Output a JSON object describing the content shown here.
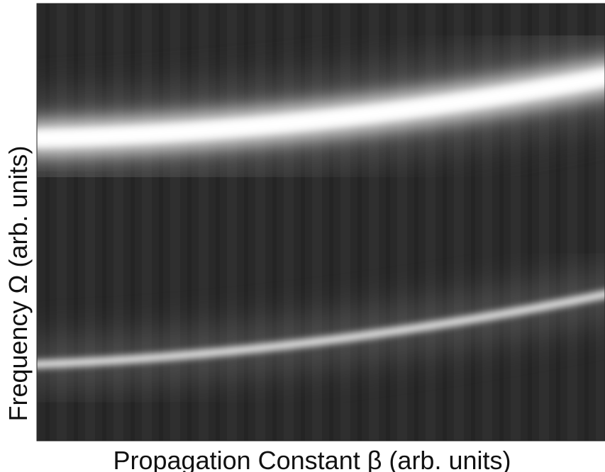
{
  "chart_data": {
    "type": "image",
    "xlabel": "Propagation Constant β (arb. units)",
    "ylabel": "Frequency Ω (arb. units)"
  }
}
